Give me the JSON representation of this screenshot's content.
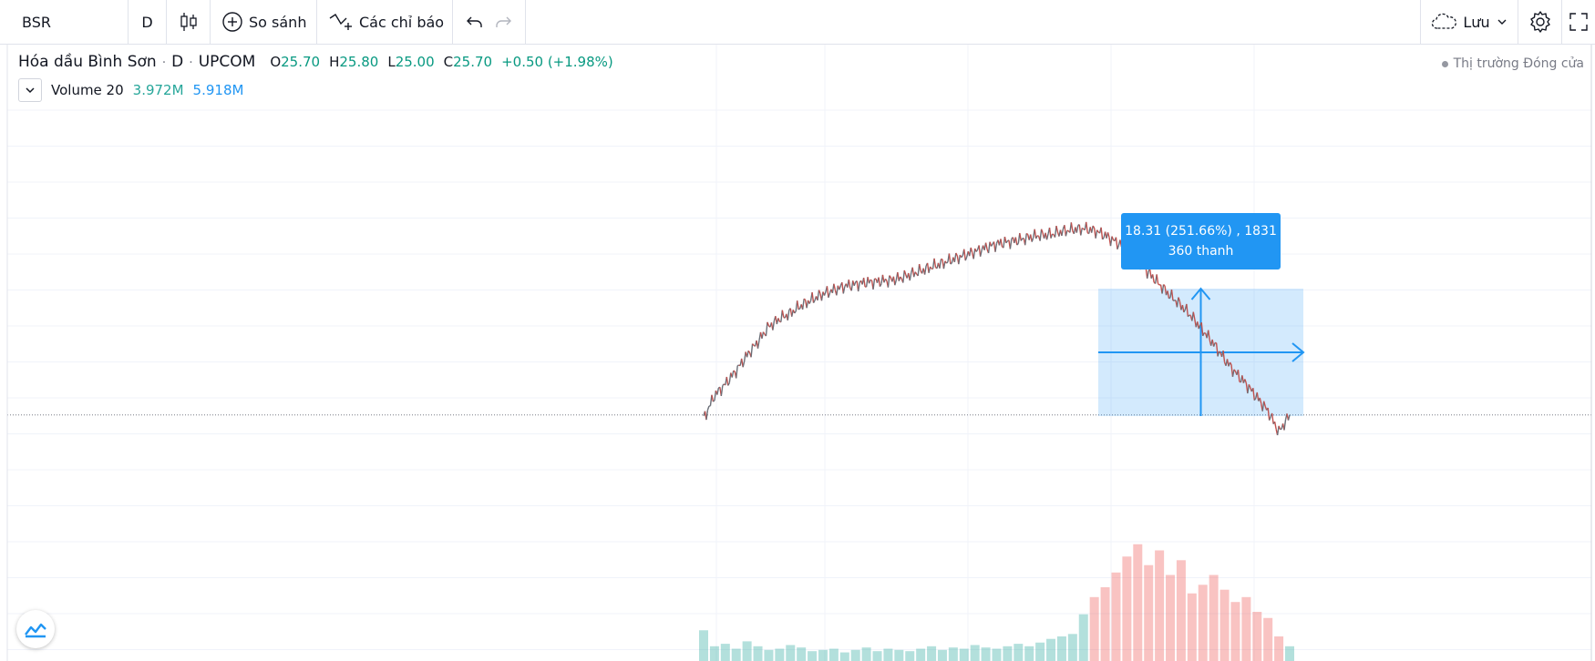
{
  "toolbar": {
    "symbol": "BSR",
    "interval": "D",
    "compare_label": "So sánh",
    "indicators_label": "Các chỉ báo",
    "save_label": "Lưu"
  },
  "legend": {
    "title": "Hóa dầu Bình Sơn",
    "interval": "D",
    "exchange": "UPCOM",
    "o_label": "O",
    "o_value": "25.70",
    "h_label": "H",
    "h_value": "25.80",
    "l_label": "L",
    "l_value": "25.00",
    "c_label": "C",
    "c_value": "25.70",
    "change": "+0.50 (+1.98%)"
  },
  "volume_legend": {
    "label": "Volume 20",
    "value1": "3.972M",
    "value2": "5.918M"
  },
  "market_status": "Thị trường Đóng cửa",
  "measure_tooltip": {
    "line1": "18.31 (251.66%) , 1831",
    "line2": "360 thanh"
  },
  "colors": {
    "up": "#26a69a",
    "down": "#ef5350",
    "measure": "#2196f3",
    "price_line": "#787b86"
  },
  "icons": [
    "candles-icon",
    "plus-circle-icon",
    "indicators-icon",
    "undo-icon",
    "redo-icon",
    "cloud-icon",
    "chevron-down-icon",
    "gear-icon",
    "fullscreen-icon",
    "tradingview-logo-icon"
  ],
  "chart_data": {
    "type": "line",
    "series": [
      {
        "values": [
          0.0,
          1.2,
          1.8,
          2.5,
          3.3,
          4.0,
          4.8,
          5.2,
          5.5,
          5.9,
          6.2,
          6.5,
          6.7,
          6.9,
          7.0,
          7.1,
          7.15,
          7.2,
          7.3,
          7.5,
          7.7,
          7.9,
          8.1,
          8.3,
          8.5,
          8.7,
          8.9,
          9.1,
          9.2,
          9.3,
          9.45,
          9.55,
          9.6,
          9.75,
          9.85,
          9.9,
          9.8,
          9.55,
          9.2,
          8.9,
          8.2,
          7.6,
          7.0,
          6.4,
          5.9,
          5.3,
          4.6,
          3.9,
          3.1,
          2.4,
          1.8,
          1.1,
          0.4,
          -0.7,
          0.2
        ]
      }
    ],
    "measure": {
      "change": 18.31,
      "change_percent": 251.66,
      "bars": 360
    },
    "volume": {
      "values": [
        0.25,
        0.12,
        0.14,
        0.1,
        0.16,
        0.12,
        0.09,
        0.1,
        0.13,
        0.11,
        0.08,
        0.09,
        0.1,
        0.07,
        0.09,
        0.11,
        0.08,
        0.1,
        0.09,
        0.08,
        0.1,
        0.12,
        0.09,
        0.11,
        0.1,
        0.13,
        0.11,
        0.1,
        0.12,
        0.14,
        0.12,
        0.15,
        0.18,
        0.2,
        0.22,
        0.38,
        0.52,
        0.6,
        0.72,
        0.85,
        0.95,
        0.78,
        0.9,
        0.7,
        0.82,
        0.55,
        0.62,
        0.7,
        0.58,
        0.48,
        0.52,
        0.4,
        0.35,
        0.2,
        0.12
      ]
    }
  }
}
